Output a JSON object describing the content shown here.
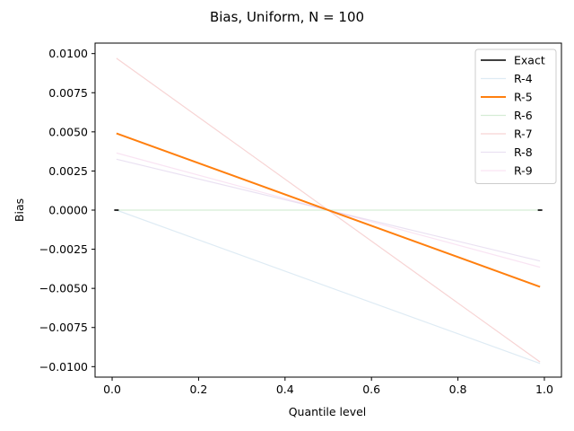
{
  "chart_data": {
    "type": "line",
    "title": "Bias, Uniform, N = 100",
    "xlabel": "Quantile level",
    "ylabel": "Bias",
    "xlim": [
      -0.0395,
      1.0395
    ],
    "ylim": [
      -0.01067,
      0.01067
    ],
    "xticks": [
      0.0,
      0.2,
      0.4,
      0.6,
      0.8,
      1.0
    ],
    "xtick_labels": [
      "0.0",
      "0.2",
      "0.4",
      "0.6",
      "0.8",
      "1.0"
    ],
    "yticks": [
      0.01,
      0.0075,
      0.005,
      0.0025,
      0.0,
      -0.0025,
      -0.005,
      -0.0075,
      -0.01
    ],
    "ytick_labels": [
      "0.0100",
      "0.0075",
      "0.0050",
      "0.0025",
      "0.0000",
      "−0.0025",
      "−0.0050",
      "−0.0075",
      "−0.0100"
    ],
    "grid": false,
    "legend_position": "top-right",
    "series": [
      {
        "name": "Exact",
        "color": "#000000",
        "width": 1.6,
        "opacity": 1.0,
        "x": [
          0.01,
          0.99
        ],
        "y": [
          0.0,
          0.0
        ],
        "endpoint_marks": true
      },
      {
        "name": "R-4",
        "color": "#1f77b4",
        "width": 1.2,
        "opacity": 0.15,
        "x": [
          0.01,
          0.99
        ],
        "y": [
          0.0,
          -0.0098
        ]
      },
      {
        "name": "R-5",
        "color": "#ff7f0e",
        "width": 2.0,
        "opacity": 1.0,
        "x": [
          0.01,
          0.99
        ],
        "y": [
          0.0049,
          -0.0049
        ]
      },
      {
        "name": "R-6",
        "color": "#2ca02c",
        "width": 1.2,
        "opacity": 0.2,
        "x": [
          0.01,
          0.99
        ],
        "y": [
          0.0,
          0.0
        ]
      },
      {
        "name": "R-7",
        "color": "#d62728",
        "width": 1.2,
        "opacity": 0.2,
        "x": [
          0.01,
          0.99
        ],
        "y": [
          0.0097,
          -0.0097
        ]
      },
      {
        "name": "R-8",
        "color": "#9467bd",
        "width": 1.2,
        "opacity": 0.2,
        "x": [
          0.01,
          0.99
        ],
        "y": [
          0.00325,
          -0.00325
        ]
      },
      {
        "name": "R-9",
        "color": "#e377c2",
        "width": 1.2,
        "opacity": 0.2,
        "x": [
          0.01,
          0.99
        ],
        "y": [
          0.00365,
          -0.00365
        ]
      }
    ]
  }
}
